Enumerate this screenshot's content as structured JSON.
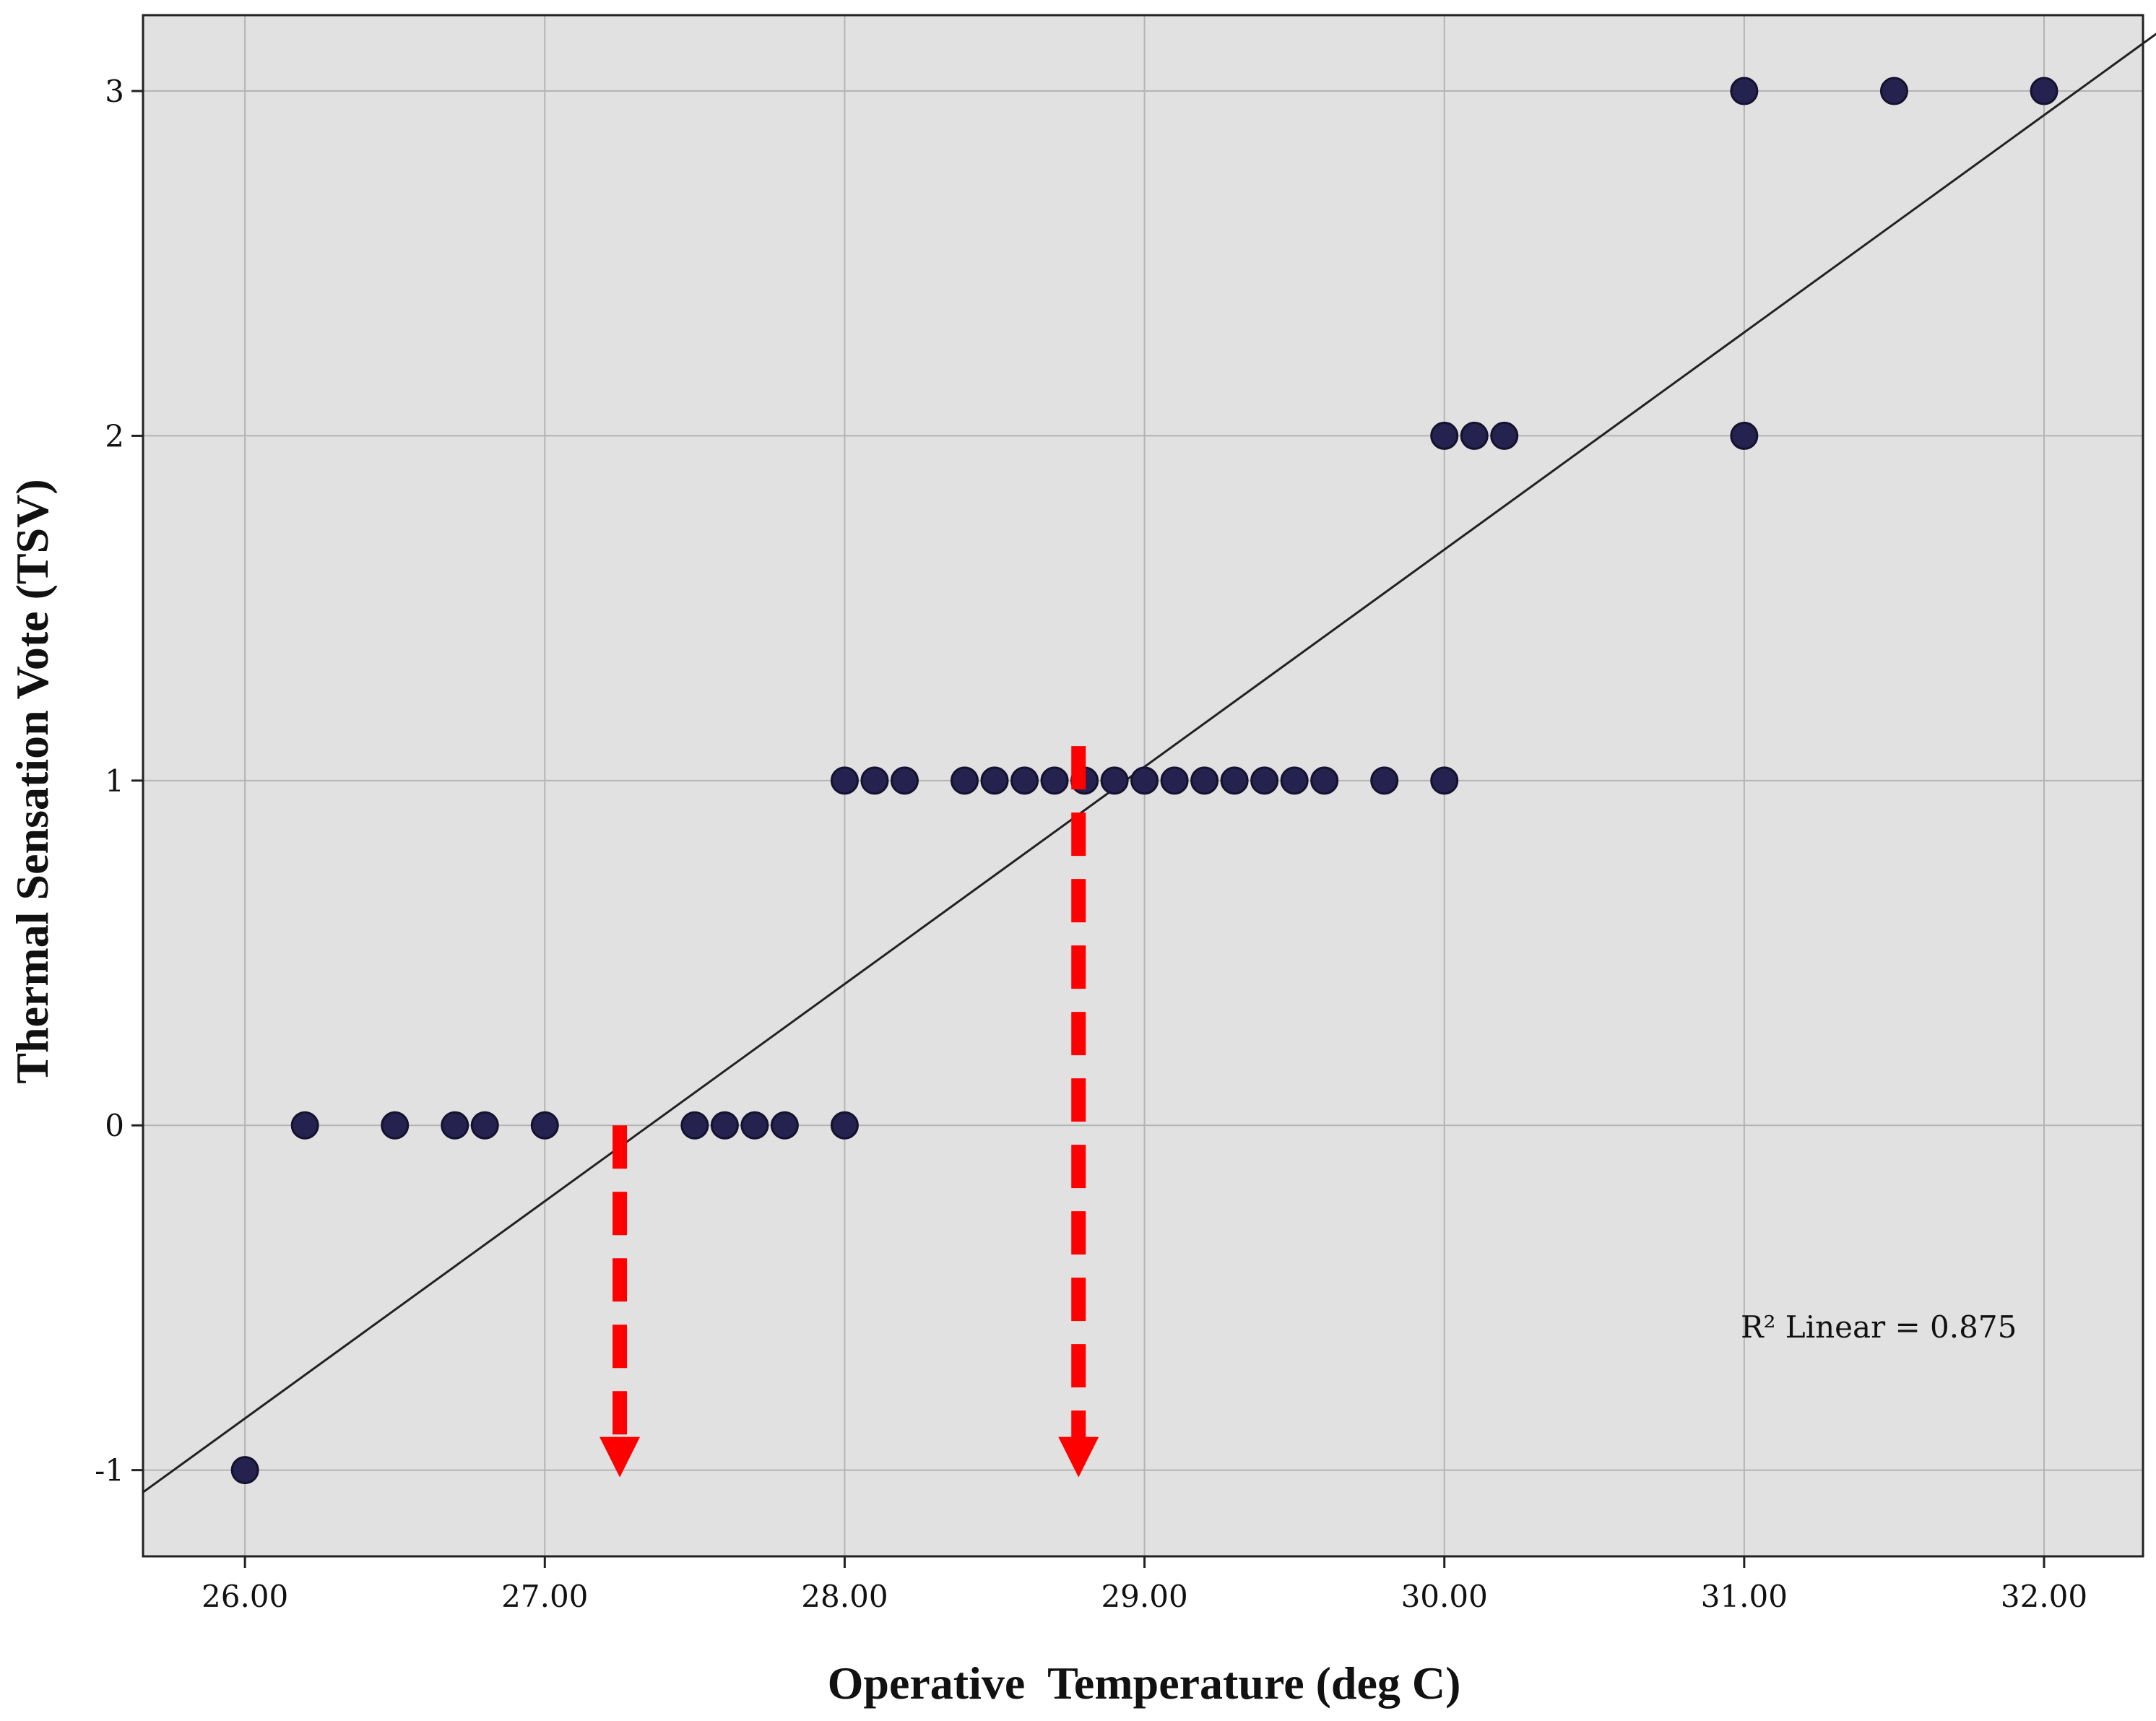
{
  "chart_data": {
    "type": "scatter",
    "xlabel": "Operative  Temperature (deg C)",
    "ylabel": "Thermal Sensation Vote (TSV)",
    "xlim": [
      25.66,
      32.33
    ],
    "ylim": [
      -1.25,
      3.22
    ],
    "x_ticks": [
      "26.00",
      "27.00",
      "28.00",
      "29.00",
      "30.00",
      "31.00",
      "32.00"
    ],
    "x_tick_values": [
      26,
      27,
      28,
      29,
      30,
      31,
      32
    ],
    "y_ticks": [
      "-1",
      "0",
      "1",
      "2",
      "3"
    ],
    "y_tick_values": [
      -1,
      0,
      1,
      2,
      3
    ],
    "grid": true,
    "background": "#e1e1e1",
    "point_color": "#25224f",
    "series": [
      {
        "points": [
          {
            "x": 26.0,
            "y": -1
          },
          {
            "x": 26.2,
            "y": 0
          },
          {
            "x": 26.5,
            "y": 0
          },
          {
            "x": 26.7,
            "y": 0
          },
          {
            "x": 26.8,
            "y": 0
          },
          {
            "x": 27.0,
            "y": 0
          },
          {
            "x": 27.5,
            "y": 0
          },
          {
            "x": 27.6,
            "y": 0
          },
          {
            "x": 27.7,
            "y": 0
          },
          {
            "x": 27.8,
            "y": 0
          },
          {
            "x": 28.0,
            "y": 0
          },
          {
            "x": 28.0,
            "y": 1
          },
          {
            "x": 28.1,
            "y": 1
          },
          {
            "x": 28.2,
            "y": 1
          },
          {
            "x": 28.4,
            "y": 1
          },
          {
            "x": 28.5,
            "y": 1
          },
          {
            "x": 28.6,
            "y": 1
          },
          {
            "x": 28.7,
            "y": 1
          },
          {
            "x": 28.8,
            "y": 1
          },
          {
            "x": 28.9,
            "y": 1
          },
          {
            "x": 29.0,
            "y": 1
          },
          {
            "x": 29.1,
            "y": 1
          },
          {
            "x": 29.2,
            "y": 1
          },
          {
            "x": 29.3,
            "y": 1
          },
          {
            "x": 29.4,
            "y": 1
          },
          {
            "x": 29.5,
            "y": 1
          },
          {
            "x": 29.6,
            "y": 1
          },
          {
            "x": 29.8,
            "y": 1
          },
          {
            "x": 30.0,
            "y": 1
          },
          {
            "x": 30.0,
            "y": 2
          },
          {
            "x": 30.1,
            "y": 2
          },
          {
            "x": 30.2,
            "y": 2
          },
          {
            "x": 31.0,
            "y": 2
          },
          {
            "x": 31.0,
            "y": 3
          },
          {
            "x": 31.5,
            "y": 3
          },
          {
            "x": 32.0,
            "y": 3
          }
        ]
      }
    ],
    "fit_line": {
      "type": "linear",
      "slope": 0.63,
      "intercept": -17.23
    },
    "annotations": {
      "r2": "R² Linear = 0.875"
    },
    "arrows": [
      {
        "x": 27.25,
        "y_from": 0.0,
        "y_to": -1.0,
        "color": "#ff0000",
        "style": "dashed"
      },
      {
        "x": 28.78,
        "y_from": 1.1,
        "y_to": -1.0,
        "color": "#ff0000",
        "style": "dashed"
      }
    ]
  }
}
